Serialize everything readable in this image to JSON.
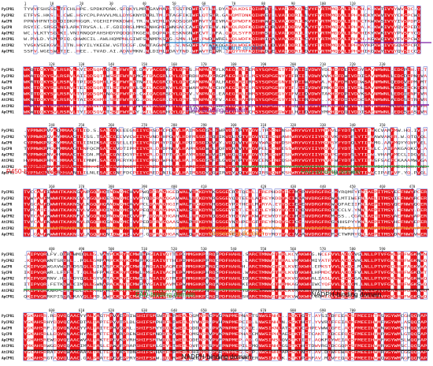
{
  "colors": {
    "identical": "#e8141b",
    "similar_text": "#e8141b",
    "similar_box": "#3b4cc0",
    "membrane_anchor": "#1e7fc8",
    "fmn": "#7b1fa2",
    "p450": "#e8141b",
    "fad": "#1f9d3a",
    "connecting": "#f07c16",
    "nadph": "#111111"
  },
  "sequence_names": [
    "PyCPR1",
    "PyCPR2",
    "AaCPR",
    "SyCPR",
    "ApCPR2",
    "AtCPR1",
    "AtCPR2",
    "ApCPR1"
  ],
  "blocks": [
    {
      "positions": [
        {
          "value": "1",
          "col": 0
        },
        {
          "value": "10",
          "col": 8
        },
        {
          "value": "20",
          "col": 17
        },
        {
          "value": "30",
          "col": 26
        },
        {
          "value": "40",
          "col": 36
        },
        {
          "value": "50",
          "col": 45
        },
        {
          "value": "60",
          "col": 54
        },
        {
          "value": "70",
          "col": 63
        },
        {
          "value": "80",
          "col": 72
        },
        {
          "value": "90",
          "col": 81
        },
        {
          "value": "100",
          "col": 90
        },
        {
          "value": "110",
          "col": 99
        }
      ]
    },
    {
      "positions": [
        {
          "value": "120",
          "col": 8
        },
        {
          "value": "130",
          "col": 17
        },
        {
          "value": "140",
          "col": 26
        },
        {
          "value": "150",
          "col": 36
        },
        {
          "value": "160",
          "col": 45
        },
        {
          "value": "170",
          "col": 54
        },
        {
          "value": "180",
          "col": 63
        },
        {
          "value": "190",
          "col": 72
        },
        {
          "value": "200",
          "col": 81
        },
        {
          "value": "210",
          "col": 90
        },
        {
          "value": "220",
          "col": 99
        },
        {
          "value": "230",
          "col": 108
        }
      ]
    },
    {
      "positions": [
        {
          "value": "240",
          "col": 8
        },
        {
          "value": "250",
          "col": 17
        },
        {
          "value": "260",
          "col": 26
        },
        {
          "value": "270",
          "col": 36
        },
        {
          "value": "280",
          "col": 45
        },
        {
          "value": "290",
          "col": 54
        },
        {
          "value": "300",
          "col": 63
        },
        {
          "value": "310",
          "col": 72
        },
        {
          "value": "320",
          "col": 81
        },
        {
          "value": "330",
          "col": 90
        },
        {
          "value": "340",
          "col": 99
        },
        {
          "value": "350",
          "col": 108
        }
      ]
    },
    {
      "positions": [
        {
          "value": "360",
          "col": 8
        },
        {
          "value": "370",
          "col": 17
        },
        {
          "value": "380",
          "col": 26
        },
        {
          "value": "390",
          "col": 36
        },
        {
          "value": "400",
          "col": 45
        },
        {
          "value": "410",
          "col": 54
        },
        {
          "value": "420",
          "col": 72
        },
        {
          "value": "430",
          "col": 81
        },
        {
          "value": "440",
          "col": 90
        },
        {
          "value": "450",
          "col": 99
        },
        {
          "value": "460",
          "col": 108
        },
        {
          "value": "470",
          "col": 117
        }
      ]
    },
    {
      "positions": [
        {
          "value": "480",
          "col": 8
        },
        {
          "value": "490",
          "col": 17
        },
        {
          "value": "500",
          "col": 26
        },
        {
          "value": "510",
          "col": 36
        },
        {
          "value": "520",
          "col": 45
        },
        {
          "value": "530",
          "col": 54
        },
        {
          "value": "540",
          "col": 63
        },
        {
          "value": "550",
          "col": 72
        },
        {
          "value": "560",
          "col": 81
        },
        {
          "value": "570",
          "col": 90
        },
        {
          "value": "580",
          "col": 99
        },
        {
          "value": "590",
          "col": 108
        }
      ]
    },
    {
      "positions": [
        {
          "value": "600",
          "col": 8
        },
        {
          "value": "610",
          "col": 17
        },
        {
          "value": "620",
          "col": 26
        },
        {
          "value": "630",
          "col": 36
        },
        {
          "value": "640",
          "col": 45
        },
        {
          "value": "650",
          "col": 54
        },
        {
          "value": "660",
          "col": 63
        },
        {
          "value": "670",
          "col": 72
        },
        {
          "value": "680",
          "col": 81
        },
        {
          "value": "690",
          "col": 90
        },
        {
          "value": "700",
          "col": 99
        }
      ]
    }
  ],
  "domains": [
    {
      "label": "Membrane anchor",
      "color_key": "membrane_anchor"
    },
    {
      "label": "FMN-binding domain",
      "color_key": "fmn"
    },
    {
      "label": "P450-binding domain",
      "color_key": "p450"
    },
    {
      "label": "FAD-binding domain",
      "color_key": "fad"
    },
    {
      "label": "connecting domain",
      "color_key": "connecting"
    },
    {
      "label": "FAD-binding domain",
      "color_key": "fad"
    },
    {
      "label": "NADPH-binding domain",
      "color_key": "nadph"
    },
    {
      "label": "NADPH-binding domain",
      "color_key": "nadph"
    }
  ]
}
